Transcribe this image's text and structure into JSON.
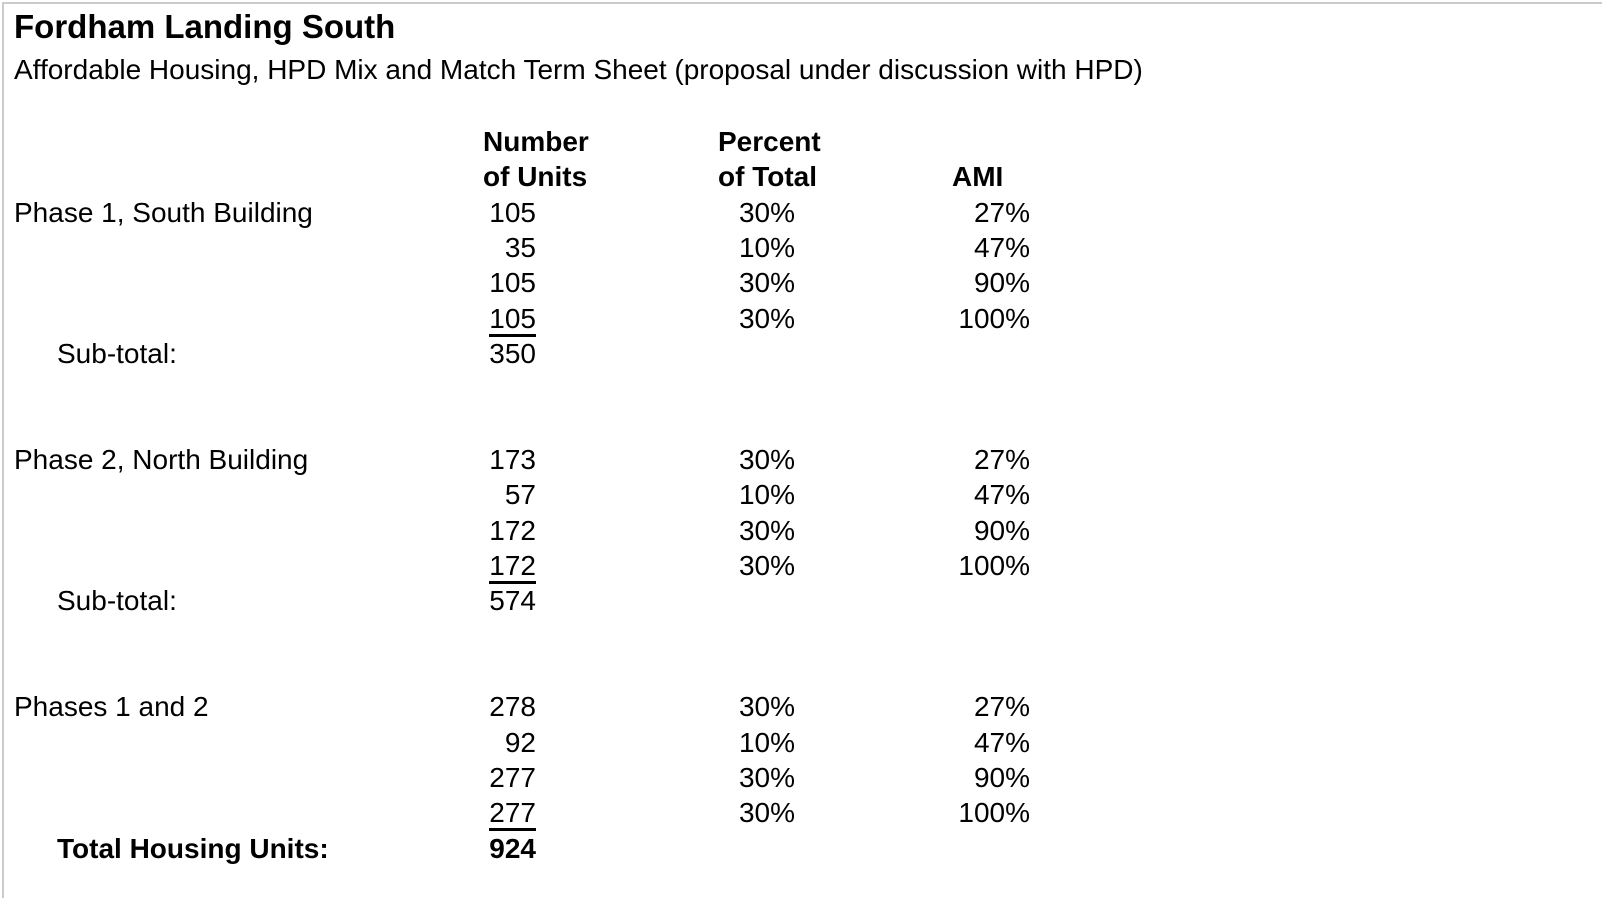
{
  "page": {
    "title": "Fordham Landing South",
    "subtitle": "Affordable Housing, HPD Mix and Match Term Sheet (proposal under discussion with HPD)"
  },
  "columns": {
    "units_line1": "Number",
    "units_line2": "of Units",
    "percent_line1": "Percent",
    "percent_line2": "of Total",
    "ami": "AMI"
  },
  "sections": [
    {
      "label": "Phase 1, South Building",
      "rows": [
        {
          "units": "105",
          "percent": "30%",
          "ami": "27%"
        },
        {
          "units": "35",
          "percent": "10%",
          "ami": "47%"
        },
        {
          "units": "105",
          "percent": "30%",
          "ami": "90%"
        },
        {
          "units": "105",
          "percent": "30%",
          "ami": "100%"
        }
      ],
      "total_label": "Sub-total:",
      "total_value": "350"
    },
    {
      "label": "Phase 2, North Building",
      "rows": [
        {
          "units": "173",
          "percent": "30%",
          "ami": "27%"
        },
        {
          "units": "57",
          "percent": "10%",
          "ami": "47%"
        },
        {
          "units": "172",
          "percent": "30%",
          "ami": "90%"
        },
        {
          "units": "172",
          "percent": "30%",
          "ami": "100%"
        }
      ],
      "total_label": "Sub-total:",
      "total_value": "574"
    },
    {
      "label": "Phases 1 and 2",
      "rows": [
        {
          "units": "278",
          "percent": "30%",
          "ami": "27%"
        },
        {
          "units": "92",
          "percent": "10%",
          "ami": "47%"
        },
        {
          "units": "277",
          "percent": "30%",
          "ami": "90%"
        },
        {
          "units": "277",
          "percent": "30%",
          "ami": "100%"
        }
      ],
      "total_label": "Total Housing Units:",
      "total_value": "924"
    }
  ],
  "colors": {
    "text": "#000000",
    "background": "#ffffff",
    "frame_border": "#cbcbcb"
  }
}
